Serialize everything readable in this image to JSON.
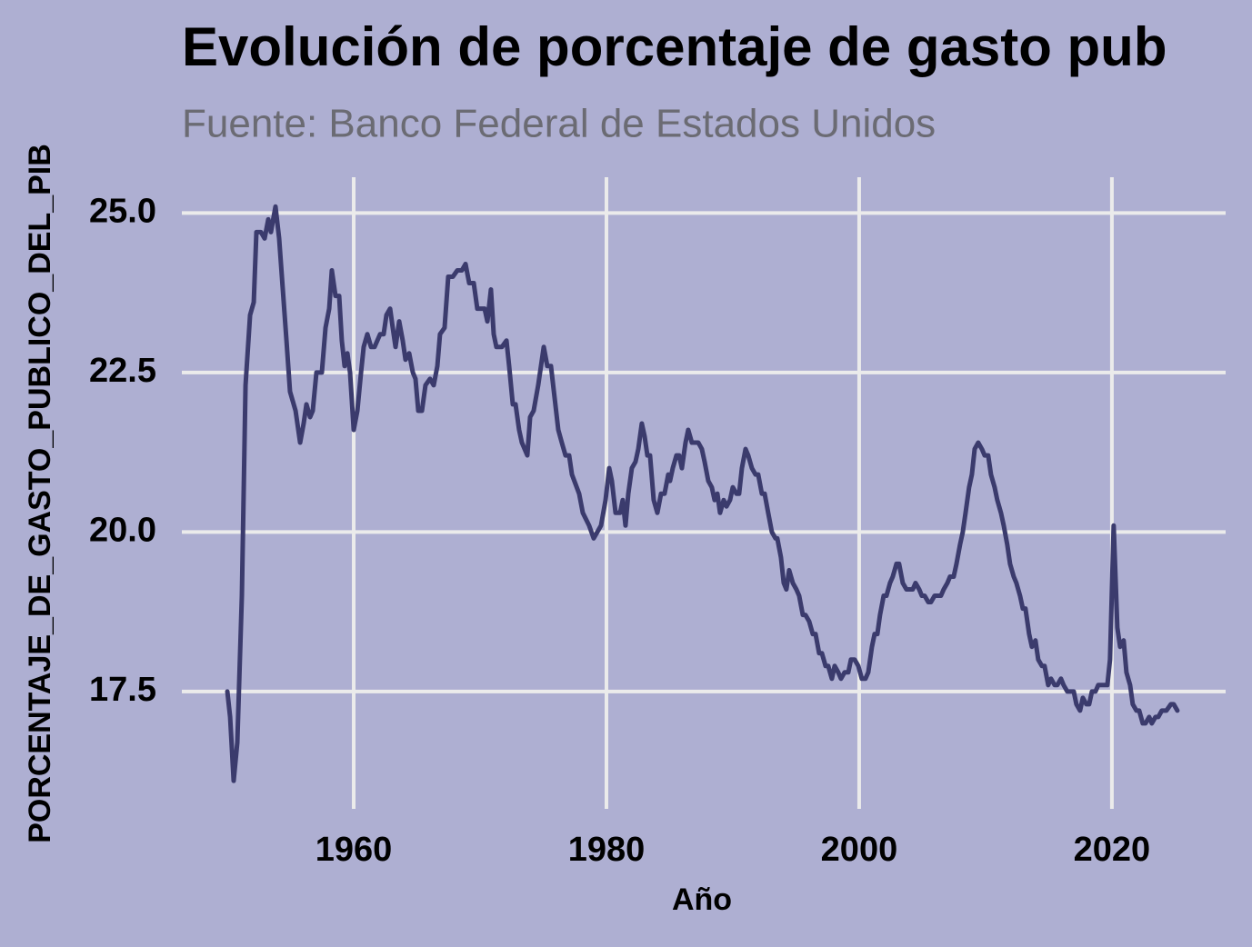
{
  "chart_data": {
    "type": "line",
    "title": "Evolución de porcentaje de gasto pub",
    "subtitle": "Fuente: Banco Federal de Estados Unidos",
    "x_label": "Año",
    "y_label": "PORCENTAJE_DE_GASTO_PUBLICO_DEL_PIB",
    "xlim": [
      1946.4,
      2029.0
    ],
    "ylim": [
      15.66,
      25.56
    ],
    "xticks": [
      1960,
      1980,
      2000,
      2020
    ],
    "yticks": [
      17.5,
      {
        "value": 20,
        "label": "20.0"
      },
      22.5,
      {
        "value": 25,
        "label": "25.0"
      }
    ],
    "grid": true,
    "x": [
      1950.0,
      1950.22,
      1950.5,
      1950.79,
      1951.15,
      1951.44,
      1951.8,
      1952.09,
      1952.3,
      1952.66,
      1952.95,
      1953.24,
      1953.45,
      1953.81,
      1954.1,
      1954.39,
      1954.68,
      1954.96,
      1955.4,
      1955.76,
      1956.04,
      1956.26,
      1956.55,
      1956.76,
      1957.05,
      1957.48,
      1957.77,
      1958.06,
      1958.27,
      1958.56,
      1958.85,
      1959.06,
      1959.28,
      1959.5,
      1959.71,
      1960.0,
      1960.29,
      1960.58,
      1960.79,
      1961.08,
      1961.37,
      1961.65,
      1962.09,
      1962.37,
      1962.59,
      1962.88,
      1963.09,
      1963.31,
      1963.6,
      1963.88,
      1964.1,
      1964.39,
      1964.68,
      1964.89,
      1965.11,
      1965.4,
      1965.68,
      1966.04,
      1966.33,
      1966.62,
      1966.83,
      1967.19,
      1967.48,
      1967.84,
      1968.2,
      1968.56,
      1968.85,
      1969.14,
      1969.5,
      1969.78,
      1970.07,
      1970.36,
      1970.58,
      1970.86,
      1971.08,
      1971.29,
      1971.73,
      1972.09,
      1972.3,
      1972.59,
      1972.81,
      1973.09,
      1973.31,
      1973.74,
      1973.96,
      1974.24,
      1974.6,
      1975.04,
      1975.32,
      1975.61,
      1975.9,
      1976.19,
      1976.47,
      1976.76,
      1977.05,
      1977.27,
      1977.84,
      1978.13,
      1978.63,
      1978.99,
      1979.28,
      1979.57,
      1979.93,
      1980.22,
      1980.43,
      1980.72,
      1981.08,
      1981.29,
      1981.51,
      1981.73,
      1982.01,
      1982.3,
      1982.52,
      1982.8,
      1983.02,
      1983.24,
      1983.45,
      1983.74,
      1984.03,
      1984.32,
      1984.6,
      1984.89,
      1985.03,
      1985.25,
      1985.54,
      1985.75,
      1985.97,
      1986.26,
      1986.47,
      1986.76,
      1987.27,
      1987.55,
      1987.77,
      1988.06,
      1988.34,
      1988.56,
      1988.78,
      1988.99,
      1989.28,
      1989.5,
      1989.78,
      1990.0,
      1990.29,
      1990.5,
      1990.72,
      1991.01,
      1991.22,
      1991.51,
      1991.8,
      1992.01,
      1992.3,
      1992.52,
      1992.8,
      1993.09,
      1993.38,
      1993.52,
      1993.81,
      1994.03,
      1994.24,
      1994.46,
      1994.75,
      1995.03,
      1995.25,
      1995.54,
      1995.75,
      1996.04,
      1996.33,
      1996.55,
      1996.83,
      1997.05,
      1997.34,
      1997.55,
      1997.84,
      1998.06,
      1998.34,
      1998.56,
      1998.85,
      1999.14,
      1999.35,
      1999.64,
      1999.93,
      2000.21,
      2000.5,
      2000.72,
      2001.01,
      2001.22,
      2001.44,
      2001.65,
      2001.94,
      2002.16,
      2002.44,
      2002.66,
      2002.95,
      2003.16,
      2003.45,
      2003.74,
      2003.96,
      2004.24,
      2004.46,
      2004.75,
      2004.96,
      2005.18,
      2005.47,
      2005.68,
      2005.97,
      2006.47,
      2006.69,
      2006.98,
      2007.19,
      2007.48,
      2007.7,
      2007.98,
      2008.2,
      2008.42,
      2008.7,
      2008.92,
      2009.14,
      2009.42,
      2009.71,
      2009.93,
      2010.21,
      2010.43,
      2010.72,
      2010.93,
      2011.22,
      2011.44,
      2011.72,
      2011.94,
      2012.23,
      2012.44,
      2012.73,
      2012.95,
      2013.16,
      2013.45,
      2013.67,
      2013.95,
      2014.17,
      2014.46,
      2014.67,
      2014.96,
      2015.18,
      2015.47,
      2015.68,
      2015.97,
      2016.18,
      2016.47,
      2016.98,
      2017.19,
      2017.48,
      2017.7,
      2017.98,
      2018.2,
      2018.42,
      2018.7,
      2018.92,
      2019.42,
      2019.64,
      2019.85,
      2020.14,
      2020.43,
      2020.65,
      2020.93,
      2021.15,
      2021.44,
      2021.65,
      2021.94,
      2022.16,
      2022.44,
      2022.66,
      2022.95,
      2023.16,
      2023.45,
      2023.67,
      2023.95,
      2024.31,
      2024.67,
      2024.89,
      2025.18
    ],
    "series": [
      {
        "color": "#3b3b6d",
        "values": [
          17.5,
          17.1,
          16.1,
          16.7,
          19.0,
          22.3,
          23.4,
          23.6,
          24.7,
          24.7,
          24.6,
          24.9,
          24.7,
          25.1,
          24.6,
          23.8,
          23.0,
          22.2,
          21.9,
          21.4,
          21.7,
          22.0,
          21.8,
          21.9,
          22.5,
          22.5,
          23.2,
          23.5,
          24.1,
          23.7,
          23.7,
          23.0,
          22.6,
          22.8,
          22.5,
          21.6,
          21.9,
          22.5,
          22.9,
          23.1,
          22.9,
          22.9,
          23.1,
          23.1,
          23.4,
          23.5,
          23.2,
          22.9,
          23.3,
          23.0,
          22.7,
          22.8,
          22.5,
          22.4,
          21.9,
          21.9,
          22.3,
          22.4,
          22.3,
          22.6,
          23.1,
          23.2,
          24.0,
          24.0,
          24.1,
          24.1,
          24.2,
          23.9,
          23.9,
          23.5,
          23.5,
          23.5,
          23.3,
          23.8,
          23.1,
          22.9,
          22.9,
          23.0,
          22.6,
          22.0,
          22.0,
          21.6,
          21.4,
          21.2,
          21.8,
          21.9,
          22.3,
          22.9,
          22.6,
          22.6,
          22.1,
          21.6,
          21.4,
          21.2,
          21.2,
          20.9,
          20.6,
          20.3,
          20.1,
          19.9,
          20.0,
          20.1,
          20.5,
          21.0,
          20.8,
          20.3,
          20.3,
          20.5,
          20.1,
          20.6,
          21.0,
          21.1,
          21.3,
          21.7,
          21.5,
          21.2,
          21.2,
          20.5,
          20.3,
          20.6,
          20.6,
          20.9,
          20.8,
          21.0,
          21.2,
          21.2,
          21.0,
          21.4,
          21.6,
          21.4,
          21.4,
          21.3,
          21.1,
          20.8,
          20.7,
          20.5,
          20.6,
          20.3,
          20.5,
          20.4,
          20.5,
          20.7,
          20.6,
          20.6,
          21.0,
          21.3,
          21.2,
          21.0,
          20.9,
          20.9,
          20.6,
          20.6,
          20.3,
          20.0,
          19.9,
          19.9,
          19.6,
          19.2,
          19.1,
          19.4,
          19.2,
          19.1,
          19.0,
          18.7,
          18.7,
          18.6,
          18.4,
          18.4,
          18.1,
          18.1,
          17.9,
          17.9,
          17.7,
          17.9,
          17.8,
          17.7,
          17.8,
          17.8,
          18.0,
          18.0,
          17.9,
          17.7,
          17.7,
          17.8,
          18.2,
          18.4,
          18.4,
          18.7,
          19.0,
          19.0,
          19.2,
          19.3,
          19.5,
          19.5,
          19.2,
          19.1,
          19.1,
          19.1,
          19.2,
          19.1,
          19.0,
          19.0,
          18.9,
          18.9,
          19.0,
          19.0,
          19.1,
          19.2,
          19.3,
          19.3,
          19.5,
          19.8,
          20.0,
          20.3,
          20.7,
          20.9,
          21.3,
          21.4,
          21.3,
          21.2,
          21.2,
          20.9,
          20.7,
          20.5,
          20.3,
          20.1,
          19.8,
          19.5,
          19.3,
          19.2,
          19.0,
          18.8,
          18.8,
          18.4,
          18.2,
          18.3,
          18.0,
          17.9,
          17.9,
          17.6,
          17.7,
          17.6,
          17.6,
          17.7,
          17.6,
          17.5,
          17.5,
          17.3,
          17.2,
          17.4,
          17.3,
          17.3,
          17.5,
          17.5,
          17.6,
          17.6,
          17.6,
          18.0,
          20.1,
          18.5,
          18.2,
          18.3,
          17.8,
          17.6,
          17.3,
          17.2,
          17.2,
          17.0,
          17.0,
          17.1,
          17.0,
          17.1,
          17.1,
          17.2,
          17.2,
          17.3,
          17.3,
          17.2
        ]
      }
    ]
  }
}
